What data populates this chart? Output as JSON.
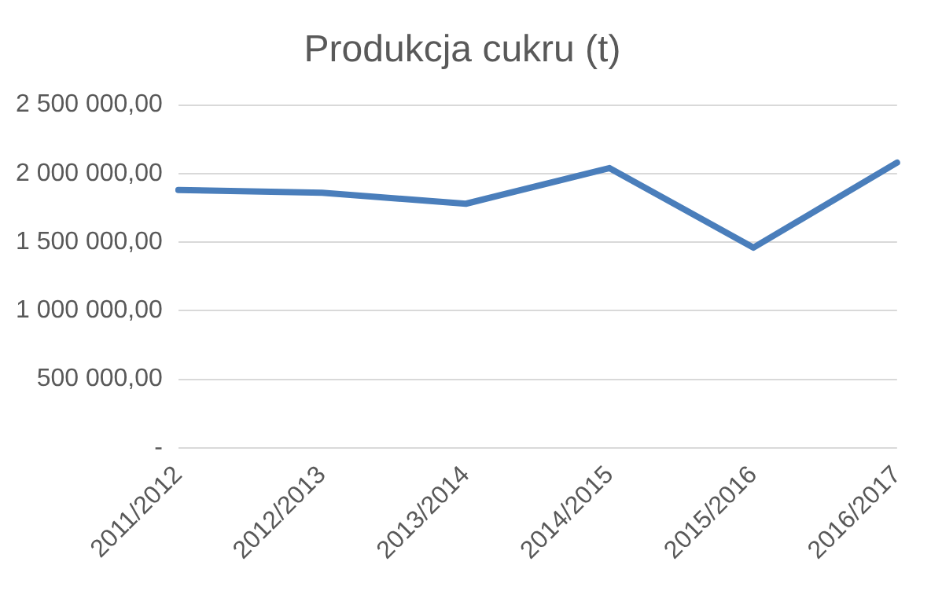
{
  "chart_data": {
    "type": "line",
    "title": "Produkcja cukru (t)",
    "categories": [
      "2011/2012",
      "2012/2013",
      "2013/2014",
      "2014/2015",
      "2015/2016",
      "2016/2017"
    ],
    "series": [
      {
        "color": "#4a7ebb",
        "values": [
          1880000,
          1860000,
          1780000,
          2040000,
          1460000,
          2080000
        ]
      }
    ],
    "ylim": [
      0,
      2500000
    ],
    "yticks": [
      {
        "value": 0,
        "label": "-"
      },
      {
        "value": 500000,
        "label": "500 000,00"
      },
      {
        "value": 1000000,
        "label": "1 000 000,00"
      },
      {
        "value": 1500000,
        "label": "1 500 000,00"
      },
      {
        "value": 2000000,
        "label": "2 000 000,00"
      },
      {
        "value": 2500000,
        "label": "2 500 000,00"
      }
    ],
    "grid": "y",
    "legend": false,
    "marker": "none",
    "line_style": "solid"
  }
}
